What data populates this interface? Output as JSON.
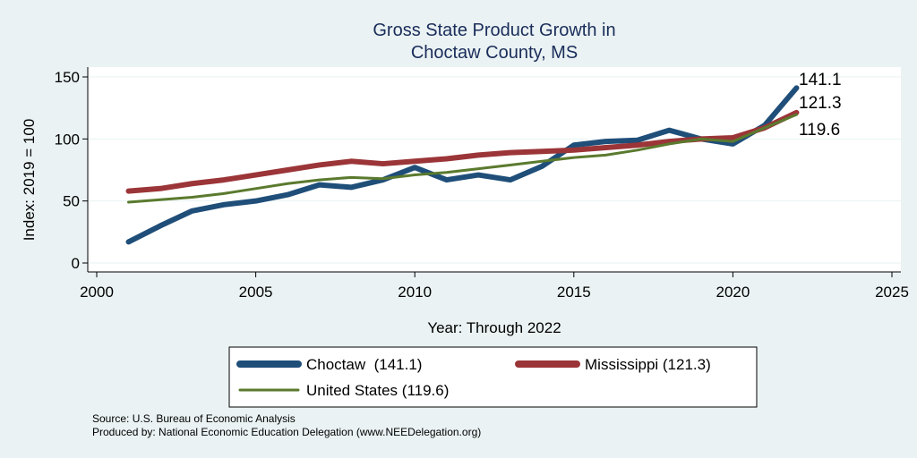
{
  "chart_data": {
    "type": "line",
    "title": [
      "Gross State Product Growth in",
      "Choctaw County, MS"
    ],
    "xlabel": "Year: Through 2022",
    "ylabel": "Index: 2019 = 100",
    "xlim": [
      2000,
      2025
    ],
    "ylim": [
      0,
      150
    ],
    "xticks": [
      "2000",
      "2005",
      "2010",
      "2015",
      "2020",
      "2025"
    ],
    "yticks": [
      "0",
      "50",
      "100",
      "150"
    ],
    "grid": true,
    "legend_position": "bottom",
    "x": [
      2001,
      2002,
      2003,
      2004,
      2005,
      2006,
      2007,
      2008,
      2009,
      2010,
      2011,
      2012,
      2013,
      2014,
      2015,
      2016,
      2017,
      2018,
      2019,
      2020,
      2021,
      2022
    ],
    "series": [
      {
        "name": "Choctaw",
        "legend_label": "Choctaw  (141.1)",
        "end_label": "141.1",
        "color": "#1f4e79",
        "values": [
          17,
          30,
          42,
          47,
          50,
          55,
          63,
          61,
          67,
          77,
          67,
          71,
          67,
          78,
          95,
          98,
          99,
          107,
          100,
          96,
          111,
          141.1
        ]
      },
      {
        "name": "Mississippi",
        "legend_label": "Mississippi (121.3)",
        "end_label": "121.3",
        "color": "#9b3538",
        "values": [
          58,
          60,
          64,
          67,
          71,
          75,
          79,
          82,
          80,
          82,
          84,
          87,
          89,
          90,
          91,
          93,
          95,
          98,
          100,
          101,
          109,
          121.3
        ]
      },
      {
        "name": "United States",
        "legend_label": "United States (119.6)",
        "end_label": "119.6",
        "color": "#5a7a2e",
        "values": [
          49,
          51,
          53,
          56,
          60,
          64,
          67,
          69,
          68,
          71,
          73,
          76,
          79,
          82,
          85,
          87,
          91,
          96,
          100,
          98,
          109,
          119.6
        ]
      }
    ]
  },
  "notes": {
    "source": "Source: U.S. Bureau of Economic Analysis",
    "produced": "Produced by: National Economic Education Delegation (www.NEEDelegation.org)"
  },
  "colors": {
    "background": "#eaf2f3",
    "plot_background": "#ffffff",
    "title": "#1a2d5a"
  }
}
